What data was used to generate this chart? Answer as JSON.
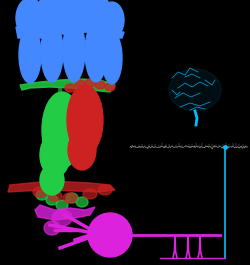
{
  "bg_color": "#000000",
  "brain_color": "#00bfff",
  "signal_line_color": "#00bfff",
  "photoreceptor_color": "#4488ff",
  "bipolar_green_color": "#22cc44",
  "bipolar_red_color": "#cc2222",
  "ganglion_color": "#dd22dd",
  "fig_width": 2.5,
  "fig_height": 2.65,
  "dpi": 100
}
